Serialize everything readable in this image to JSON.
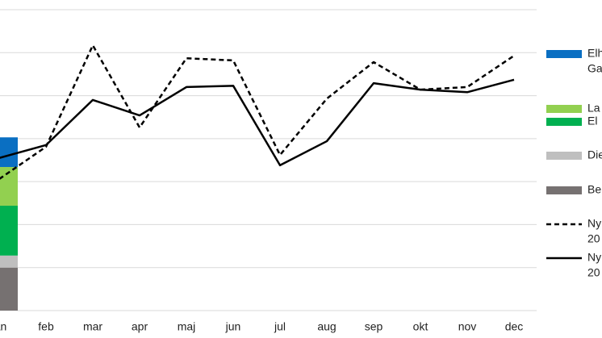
{
  "chart_data": {
    "type": "combo",
    "categories": [
      "jan",
      "feb",
      "mar",
      "apr",
      "maj",
      "jun",
      "jul",
      "aug",
      "sep",
      "okt",
      "nov",
      "dec"
    ],
    "ylim": [
      0,
      7
    ],
    "yticks": [
      0,
      1,
      2,
      3,
      4,
      5,
      6,
      7
    ],
    "grid": true,
    "series": [
      {
        "type": "bar",
        "name": [
          "Be"
        ],
        "color": "#767171",
        "values": [
          1.0,
          null,
          null,
          null,
          null,
          null,
          null,
          null,
          null,
          null,
          null,
          null
        ]
      },
      {
        "type": "bar",
        "name": [
          "Die"
        ],
        "color": "#bfbfbf",
        "values": [
          0.28,
          null,
          null,
          null,
          null,
          null,
          null,
          null,
          null,
          null,
          null,
          null
        ]
      },
      {
        "type": "bar",
        "name": [
          "El"
        ],
        "color": "#00b050",
        "values": [
          1.16,
          null,
          null,
          null,
          null,
          null,
          null,
          null,
          null,
          null,
          null,
          null
        ]
      },
      {
        "type": "bar",
        "name": [
          "La"
        ],
        "color": "#92d050",
        "values": [
          0.9,
          null,
          null,
          null,
          null,
          null,
          null,
          null,
          null,
          null,
          null,
          null
        ]
      },
      {
        "type": "bar",
        "name": [
          "Elh",
          "Ga"
        ],
        "color": "#0a6fc2",
        "values": [
          0.69,
          null,
          null,
          null,
          null,
          null,
          null,
          null,
          null,
          null,
          null,
          null
        ]
      },
      {
        "type": "line",
        "name": [
          "Ny",
          "20"
        ],
        "color": "#000000",
        "dashed": true,
        "values": [
          3.06,
          3.81,
          6.17,
          4.26,
          5.87,
          5.82,
          3.62,
          4.93,
          5.78,
          5.14,
          5.2,
          5.93
        ]
      },
      {
        "type": "line",
        "name": [
          "Ny",
          "20"
        ],
        "color": "#000000",
        "dashed": false,
        "values": [
          3.55,
          3.85,
          4.9,
          4.54,
          5.2,
          5.23,
          3.38,
          3.94,
          5.29,
          5.14,
          5.08,
          5.37
        ]
      }
    ]
  }
}
